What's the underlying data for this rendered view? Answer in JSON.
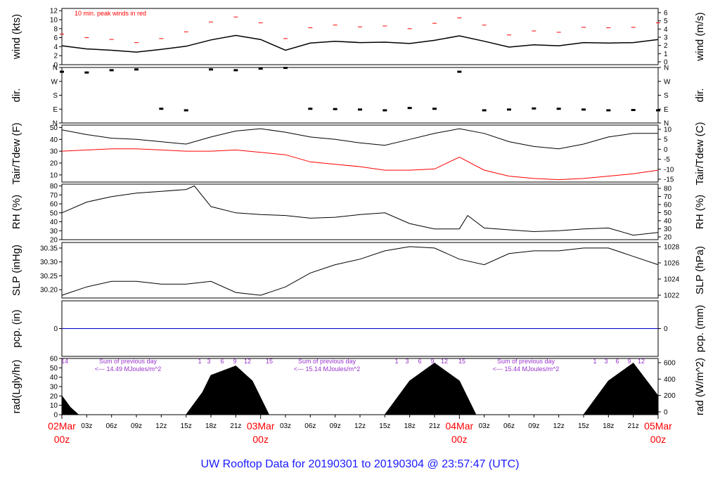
{
  "chart_data": {
    "type": "line",
    "title": "UW Rooftop Data for 20190301  to  20190304 @ 23:57:47  (UTC)",
    "x_ticks": {
      "major": [
        {
          "line1": "02Mar",
          "line2": "00z"
        },
        {
          "line1": "03Mar",
          "line2": "00z"
        },
        {
          "line1": "04Mar",
          "line2": "00z"
        },
        {
          "line1": "05Mar",
          "line2": "00z"
        }
      ],
      "minor": [
        "03z",
        "06z",
        "09z",
        "12z",
        "15z",
        "18z",
        "21z"
      ]
    },
    "panels": [
      {
        "id": "wind",
        "ylabel_left": "wind (kts)",
        "ylabel_right": "wind (m/s)",
        "yticks_left": [
          "0",
          "2",
          "4",
          "6",
          "8",
          "10",
          "12"
        ],
        "yticks_right": [
          "0",
          "1",
          "2",
          "3",
          "4",
          "5",
          "6"
        ],
        "ylim": [
          0,
          12.5
        ],
        "annotation": "10 min. peak winds in red",
        "series": [
          {
            "name": "wind",
            "color": "#000000",
            "x": [
              0,
              3,
              6,
              9,
              12,
              15,
              18,
              21,
              24,
              27,
              30,
              33,
              36,
              39,
              42,
              45,
              48,
              51,
              54,
              57,
              60,
              63,
              66,
              69,
              72
            ],
            "y": [
              4.2,
              3.5,
              3.2,
              2.8,
              3.4,
              4.1,
              5.5,
              6.5,
              5.6,
              3.2,
              4.8,
              5.2,
              4.9,
              5.0,
              4.7,
              5.4,
              6.4,
              5.2,
              3.9,
              4.4,
              4.2,
              4.9,
              4.8,
              4.9,
              5.6
            ]
          },
          {
            "name": "peak",
            "color": "#ff0000",
            "x": [
              0,
              3,
              6,
              9,
              12,
              15,
              18,
              21,
              24,
              27,
              30,
              33,
              36,
              39,
              42,
              45,
              48,
              51,
              54,
              57,
              60,
              63,
              66,
              69,
              72
            ],
            "y": [
              6.8,
              6.0,
              5.6,
              4.9,
              5.8,
              7.3,
              9.5,
              10.6,
              9.3,
              5.8,
              8.2,
              8.8,
              8.4,
              8.6,
              8.0,
              9.2,
              10.4,
              8.8,
              6.6,
              7.5,
              7.2,
              8.3,
              8.2,
              8.3,
              9.3
            ]
          }
        ]
      },
      {
        "id": "dir",
        "ylabel_left": "dir.",
        "ylabel_right": "dir.",
        "yticks_left": [
          "N",
          "E",
          "S",
          "W",
          "N"
        ],
        "yticks_right": [
          "N",
          "E",
          "S",
          "W",
          "N"
        ],
        "ylim": [
          0,
          360
        ],
        "series": [
          {
            "name": "direction",
            "color": "#000000",
            "x": [
              0,
              3,
              6,
              9,
              12,
              15,
              18,
              21,
              24,
              27,
              30,
              33,
              36,
              39,
              42,
              45,
              48,
              51,
              54,
              57,
              60,
              63,
              66,
              69,
              72
            ],
            "y": [
              330,
              325,
              340,
              345,
              90,
              80,
              345,
              340,
              350,
              355,
              90,
              88,
              85,
              80,
              95,
              90,
              330,
              80,
              85,
              92,
              90,
              85,
              80,
              82,
              80
            ]
          }
        ]
      },
      {
        "id": "temp",
        "ylabel_left": "Tair/Tdew (F)",
        "ylabel_right": "Tair/Tdew (C)",
        "yticks_left": [
          "10",
          "20",
          "30",
          "40",
          "50"
        ],
        "yticks_right": [
          "-15",
          "-10",
          "-5",
          "0",
          "5",
          "10"
        ],
        "ylim": [
          4,
          52
        ],
        "series": [
          {
            "name": "Tair",
            "color": "#000000",
            "x": [
              0,
              3,
              6,
              9,
              12,
              15,
              18,
              21,
              24,
              27,
              30,
              33,
              36,
              39,
              42,
              45,
              48,
              51,
              54,
              57,
              60,
              63,
              66,
              69,
              72
            ],
            "y": [
              48,
              44,
              41,
              40,
              38,
              36,
              42,
              47,
              49,
              46,
              42,
              40,
              37,
              35,
              40,
              45,
              49,
              45,
              38,
              34,
              32,
              36,
              42,
              45,
              45
            ]
          },
          {
            "name": "Tdew",
            "color": "#ff0000",
            "x": [
              0,
              3,
              6,
              9,
              12,
              15,
              18,
              21,
              24,
              27,
              30,
              33,
              36,
              39,
              42,
              45,
              48,
              51,
              54,
              57,
              60,
              63,
              66,
              69,
              72
            ],
            "y": [
              30,
              31,
              32,
              32,
              31,
              30,
              30,
              31,
              29,
              27,
              21,
              19,
              17,
              14,
              14,
              15,
              25,
              14,
              9,
              7,
              6,
              7,
              9,
              11,
              14
            ]
          }
        ]
      },
      {
        "id": "rh",
        "ylabel_left": "RH (%)",
        "ylabel_right": "RH (%)",
        "yticks_left": [
          "20",
          "30",
          "40",
          "50",
          "60",
          "70",
          "80"
        ],
        "yticks_right": [
          "20",
          "30",
          "40",
          "50",
          "60",
          "70",
          "80"
        ],
        "ylim": [
          20,
          82
        ],
        "series": [
          {
            "name": "RH",
            "color": "#000000",
            "x": [
              0,
              3,
              6,
              9,
              12,
              15,
              16,
              18,
              21,
              24,
              27,
              30,
              33,
              36,
              39,
              42,
              45,
              48,
              49,
              51,
              54,
              57,
              60,
              63,
              66,
              69,
              72
            ],
            "y": [
              50,
              62,
              68,
              72,
              74,
              76,
              80,
              57,
              50,
              48,
              47,
              44,
              45,
              48,
              50,
              38,
              32,
              32,
              47,
              33,
              31,
              29,
              30,
              32,
              33,
              25,
              28
            ]
          }
        ]
      },
      {
        "id": "slp",
        "ylabel_left": "SLP (inHg)",
        "ylabel_right": "SLP (hPa)",
        "yticks_left": [
          "30.20",
          "30.25",
          "30.30",
          "30.35"
        ],
        "yticks_right": [
          "1022",
          "1024",
          "1026",
          "1028"
        ],
        "ylim": [
          30.17,
          30.37
        ],
        "series": [
          {
            "name": "SLP",
            "color": "#000000",
            "x": [
              0,
              3,
              6,
              9,
              12,
              15,
              18,
              21,
              24,
              27,
              30,
              33,
              36,
              39,
              42,
              45,
              48,
              51,
              54,
              57,
              60,
              63,
              66,
              69,
              72
            ],
            "y": [
              30.18,
              30.21,
              30.23,
              30.23,
              30.22,
              30.22,
              30.23,
              30.19,
              30.18,
              30.21,
              30.26,
              30.29,
              30.31,
              30.34,
              30.355,
              30.35,
              30.31,
              30.29,
              30.33,
              30.34,
              30.34,
              30.35,
              30.35,
              30.32,
              30.29
            ]
          }
        ]
      },
      {
        "id": "pcp",
        "ylabel_left": "pcp. (in)",
        "ylabel_right": "pcp. (mm)",
        "yticks_left": [
          "0"
        ],
        "yticks_right": [
          "0"
        ],
        "ylim": [
          -1,
          1
        ],
        "series": [
          {
            "name": "precipitation",
            "color": "#0000cc",
            "x": [
              0,
              72
            ],
            "y": [
              0,
              0
            ]
          }
        ]
      },
      {
        "id": "rad",
        "ylabel_left": "rad(Lgly/hr)",
        "ylabel_right": "rad (W/m^2)",
        "yticks_left": [
          "0",
          "10",
          "20",
          "30",
          "40",
          "50",
          "60"
        ],
        "yticks_right": [
          "0",
          "200",
          "400",
          "600"
        ],
        "ylim": [
          0,
          60
        ],
        "day_sums": [
          {
            "line1": "Sum of previous day",
            "line2": "<--- 14.49 MJoules/m^2"
          },
          {
            "line1": "Sum of previous day",
            "line2": "<--- 15.14 MJoules/m^2"
          },
          {
            "line1": "Sum of previous day",
            "line2": "<--- 15.44 MJoules/m^2"
          }
        ],
        "hour_labels": [
          "14",
          "1",
          "3",
          "6",
          "9",
          "12",
          "15",
          "1",
          "3",
          "6",
          "9",
          "12",
          "15",
          "1",
          "3",
          "6",
          "9",
          "12"
        ],
        "series": [
          {
            "name": "radiation",
            "color": "#000000",
            "x": [
              0,
              1,
              2,
              15,
              17,
              18,
              21,
              23,
              24,
              25,
              39,
              42,
              45,
              48,
              50,
              63,
              66,
              69,
              72
            ],
            "y": [
              20,
              8,
              0,
              0,
              24,
              42,
              52,
              36,
              18,
              0,
              0,
              36,
              55,
              36,
              0,
              0,
              36,
              55,
              20
            ]
          }
        ]
      }
    ]
  }
}
